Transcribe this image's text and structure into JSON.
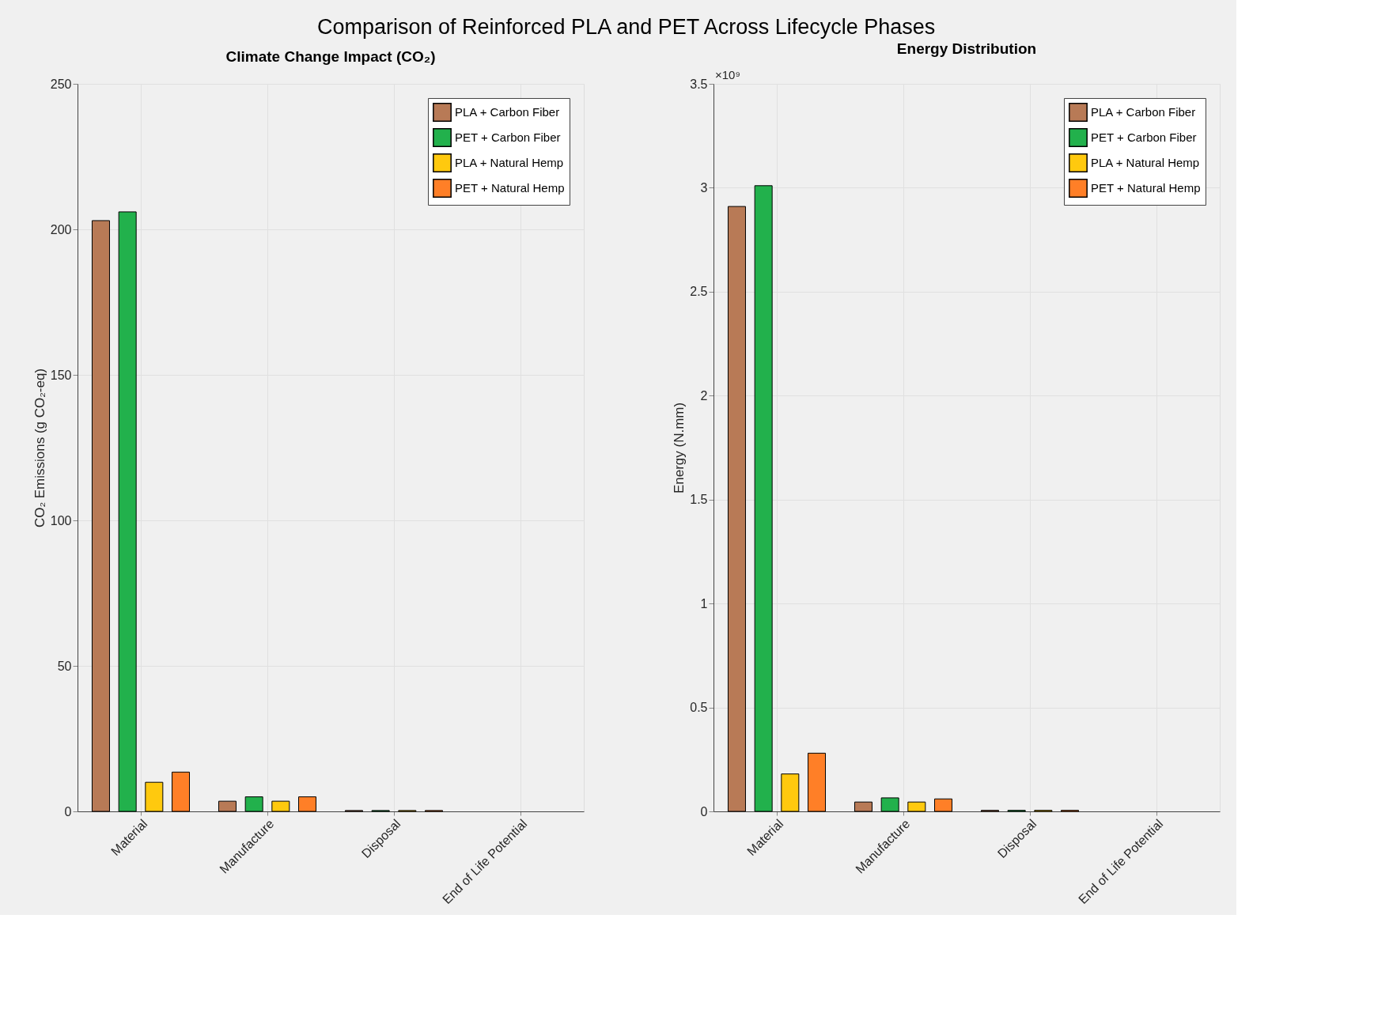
{
  "chart_data": [
    {
      "type": "bar",
      "title": "Climate Change Impact (CO₂)",
      "ylabel": "CO₂ Emissions (g CO₂-eq)",
      "annotations": [
        "Comparison of Reinforced PLA and PET Across Lifecycle Phases"
      ],
      "categories": [
        "Material",
        "Manufacture",
        "Disposal",
        "End of Life Potential"
      ],
      "series": [
        {
          "name": "PLA + Carbon Fiber",
          "color": "#b87a56",
          "values": [
            203,
            3.5,
            0.3,
            null
          ]
        },
        {
          "name": "PET + Carbon Fiber",
          "color": "#22b14c",
          "values": [
            206,
            5,
            0.3,
            null
          ]
        },
        {
          "name": "PLA + Natural Hemp",
          "color": "#ffc90e",
          "values": [
            10,
            3.5,
            0.3,
            null
          ]
        },
        {
          "name": "PET + Natural Hemp",
          "color": "#ff7f27",
          "values": [
            13.5,
            5,
            0.3,
            null
          ]
        }
      ],
      "ylim": [
        0,
        250
      ],
      "yticks": [
        0,
        50,
        100,
        150,
        200,
        250
      ],
      "grid": true,
      "legend": "top right"
    },
    {
      "type": "bar",
      "title": "Energy Distribution",
      "ylabel": "Energy (N.mm)",
      "annotations": [
        "×10⁹"
      ],
      "categories": [
        "Material",
        "Manufacture",
        "Disposal",
        "End of Life Potential"
      ],
      "series": [
        {
          "name": "PLA + Carbon Fiber",
          "color": "#b87a56",
          "values": [
            2.91,
            0.045,
            0.005,
            null
          ]
        },
        {
          "name": "PET + Carbon Fiber",
          "color": "#22b14c",
          "values": [
            3.01,
            0.065,
            0.005,
            null
          ]
        },
        {
          "name": "PLA + Natural Hemp",
          "color": "#ffc90e",
          "values": [
            0.18,
            0.045,
            0.005,
            null
          ]
        },
        {
          "name": "PET + Natural Hemp",
          "color": "#ff7f27",
          "values": [
            0.28,
            0.06,
            0.005,
            null
          ]
        }
      ],
      "ylim": [
        0,
        3.5
      ],
      "yticks": [
        0,
        0.5,
        1,
        1.5,
        2,
        2.5,
        3,
        3.5
      ],
      "grid": true,
      "legend": "top right"
    }
  ]
}
